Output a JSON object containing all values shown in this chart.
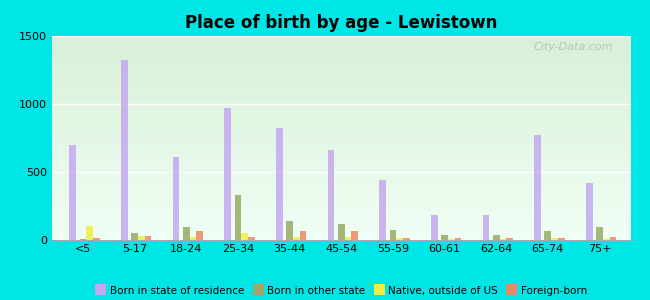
{
  "title": "Place of birth by age - Lewistown",
  "categories": [
    "<5",
    "5-17",
    "18-24",
    "25-34",
    "35-44",
    "45-54",
    "55-59",
    "60-61",
    "62-64",
    "65-74",
    "75+"
  ],
  "series": {
    "Born in state of residence": [
      700,
      1320,
      610,
      970,
      820,
      660,
      440,
      185,
      185,
      775,
      420
    ],
    "Born in other state": [
      5,
      55,
      95,
      330,
      140,
      120,
      70,
      35,
      40,
      65,
      95
    ],
    "Native, outside of US": [
      100,
      30,
      20,
      50,
      20,
      20,
      15,
      10,
      10,
      15,
      10
    ],
    "Foreign-born": [
      15,
      30,
      65,
      20,
      65,
      65,
      15,
      15,
      15,
      15,
      25
    ]
  },
  "colors": {
    "Born in state of residence": "#c4a8f0",
    "Born in other state": "#99aa66",
    "Native, outside of US": "#eeee44",
    "Foreign-born": "#ee8866"
  },
  "ylim": [
    0,
    1500
  ],
  "yticks": [
    0,
    500,
    1000,
    1500
  ],
  "background_color": "#00e5e5",
  "watermark": "City-Data.com"
}
